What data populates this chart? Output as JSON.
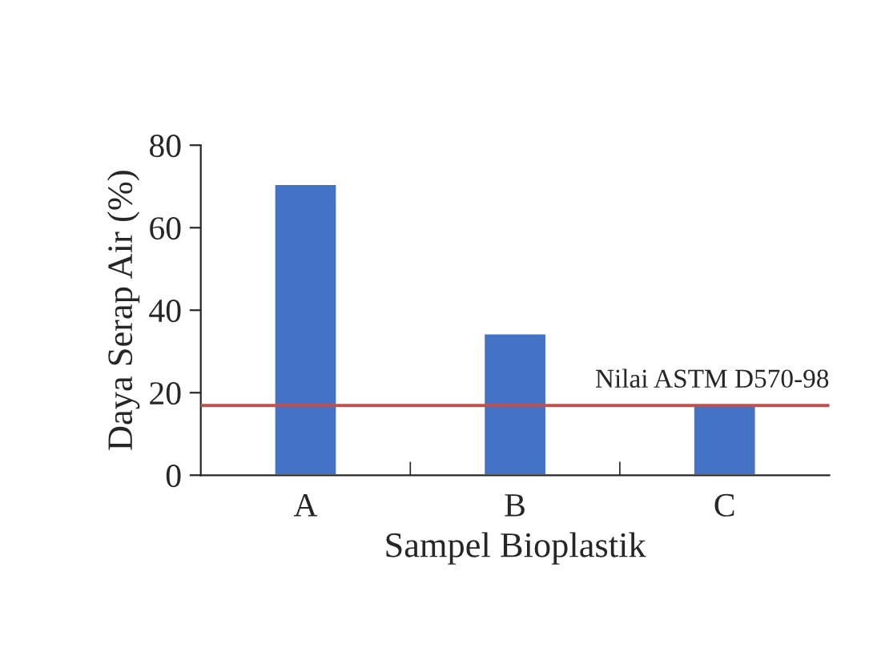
{
  "chart_data": {
    "type": "bar",
    "xlabel": "Sampel Bioplastik",
    "ylabel": "Daya Serap Air (%)",
    "categories": [
      "A",
      "B",
      "C"
    ],
    "values": [
      70.6,
      34.4,
      16.9
    ],
    "color": "#4472c4",
    "ylim": [
      0,
      80
    ],
    "yticks": [
      0,
      20,
      40,
      60,
      80
    ],
    "grid": false,
    "legend": false,
    "ref_lines": [
      {
        "axis": "y",
        "value": 16.9,
        "label": "Nilai ASTM D570-98",
        "color": "#c0504d"
      }
    ]
  }
}
